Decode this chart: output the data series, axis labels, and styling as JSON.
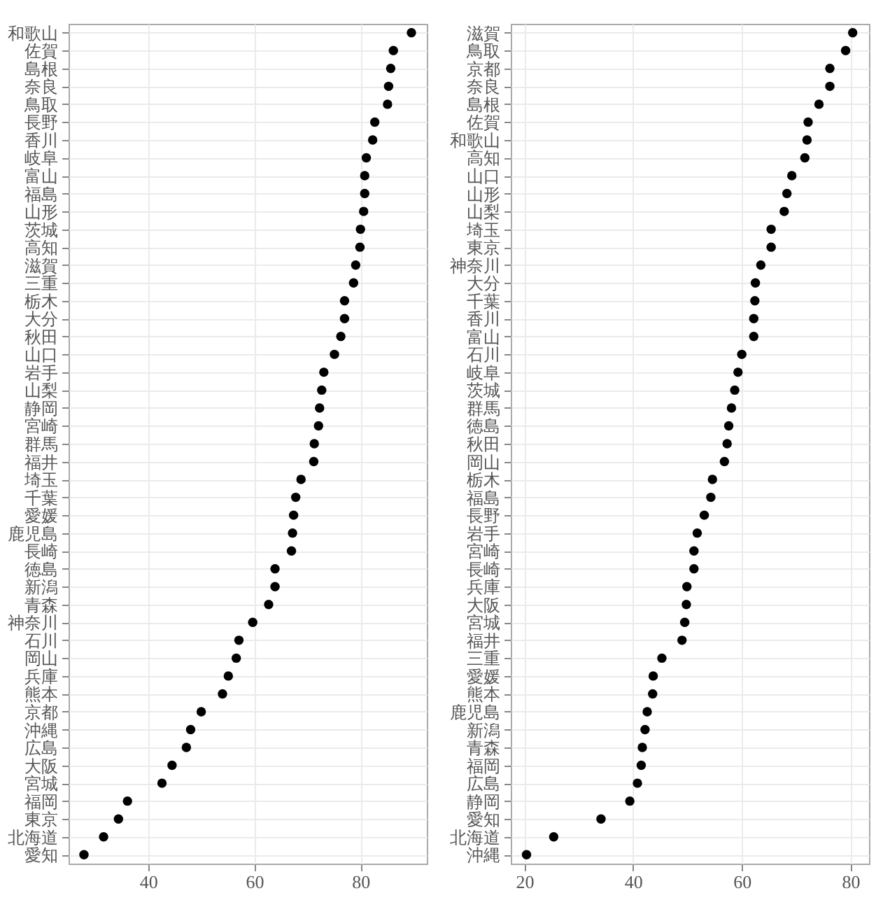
{
  "chart_data": [
    {
      "type": "scatter",
      "categories": [
        "和歌山",
        "佐賀",
        "島根",
        "奈良",
        "鳥取",
        "長野",
        "香川",
        "岐阜",
        "富山",
        "福島",
        "山形",
        "茨城",
        "高知",
        "滋賀",
        "三重",
        "栃木",
        "大分",
        "秋田",
        "山口",
        "岩手",
        "山梨",
        "静岡",
        "宮崎",
        "群馬",
        "福井",
        "埼玉",
        "千葉",
        "愛媛",
        "鹿児島",
        "長崎",
        "徳島",
        "新潟",
        "青森",
        "神奈川",
        "石川",
        "岡山",
        "兵庫",
        "熊本",
        "京都",
        "沖縄",
        "広島",
        "大阪",
        "宮城",
        "福岡",
        "東京",
        "北海道",
        "愛知"
      ],
      "series": [
        {
          "color": "#000000",
          "values": [
            89.6,
            86.2,
            85.7,
            85.3,
            85.1,
            82.7,
            82.3,
            81.1,
            80.8,
            80.8,
            80.6,
            80.0,
            79.9,
            79.1,
            78.7,
            77.0,
            77.0,
            76.3,
            75.1,
            73.1,
            72.7,
            72.3,
            72.1,
            71.3,
            71.2,
            68.8,
            67.8,
            67.4,
            67.2,
            67.0,
            63.9,
            63.9,
            62.7,
            59.7,
            57.1,
            56.6,
            55.1,
            54.0,
            50.0,
            48.0,
            47.2,
            44.5,
            42.6,
            36.1,
            34.4,
            31.6,
            27.9
          ]
        }
      ],
      "orientation": "horizontal",
      "xlim": [
        25,
        92.5
      ],
      "xticks": [
        40,
        60,
        80
      ],
      "grid": true,
      "marker": "circle"
    },
    {
      "type": "scatter",
      "categories": [
        "滋賀",
        "鳥取",
        "京都",
        "奈良",
        "島根",
        "佐賀",
        "和歌山",
        "高知",
        "山口",
        "山形",
        "山梨",
        "埼玉",
        "東京",
        "神奈川",
        "大分",
        "千葉",
        "香川",
        "富山",
        "石川",
        "岐阜",
        "茨城",
        "群馬",
        "徳島",
        "秋田",
        "岡山",
        "栃木",
        "福島",
        "長野",
        "岩手",
        "宮崎",
        "長崎",
        "兵庫",
        "大阪",
        "宮城",
        "福井",
        "三重",
        "愛媛",
        "熊本",
        "鹿児島",
        "新潟",
        "青森",
        "福岡",
        "広島",
        "静岡",
        "愛知",
        "北海道",
        "沖縄"
      ],
      "series": [
        {
          "color": "#000000",
          "values": [
            80.4,
            79.1,
            76.2,
            76.2,
            74.2,
            72.2,
            72.0,
            71.6,
            69.2,
            68.3,
            67.8,
            65.4,
            65.4,
            63.5,
            62.5,
            62.4,
            62.2,
            62.2,
            60.0,
            59.3,
            58.7,
            58.1,
            57.6,
            57.3,
            56.8,
            54.6,
            54.3,
            53.1,
            51.8,
            51.2,
            51.2,
            49.9,
            49.8,
            49.5,
            49.0,
            45.3,
            43.7,
            43.6,
            42.6,
            42.2,
            41.7,
            41.5,
            40.8,
            39.4,
            34.1,
            25.4,
            20.4
          ]
        }
      ],
      "orientation": "horizontal",
      "xlim": [
        17.5,
        83.4
      ],
      "xticks": [
        20,
        40,
        60,
        80
      ],
      "grid": true,
      "marker": "circle"
    }
  ]
}
